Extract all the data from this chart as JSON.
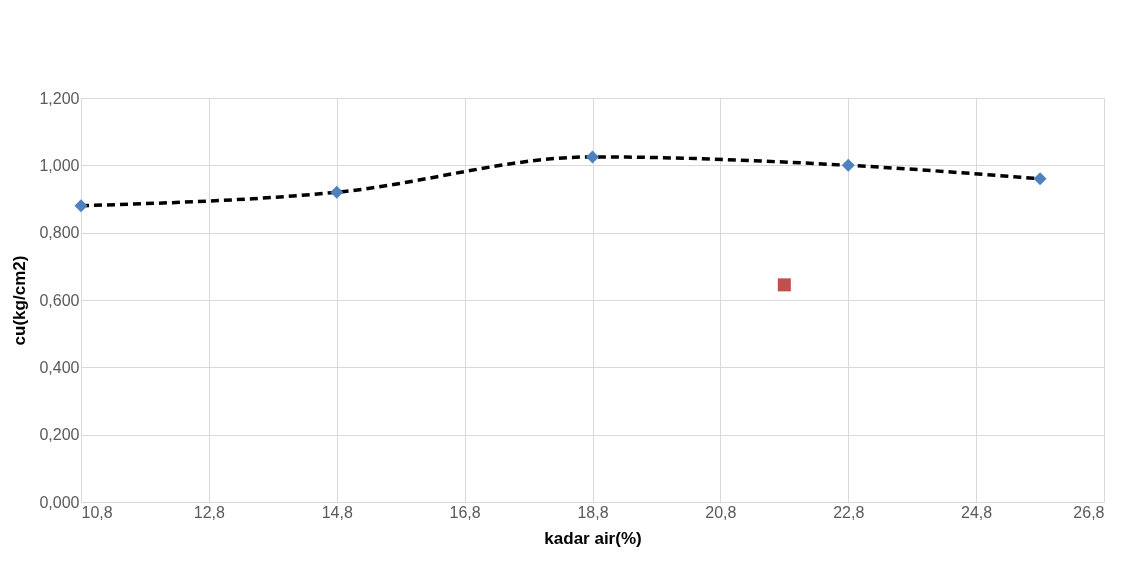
{
  "chart_data": {
    "type": "scatter",
    "xlabel": "kadar air(%)",
    "ylabel": "cu(kg/cm2)",
    "xlim": [
      10.8,
      26.8
    ],
    "ylim": [
      0,
      1.2
    ],
    "xticks": [
      {
        "value": 10.8,
        "label": "10,8"
      },
      {
        "value": 12.8,
        "label": "12,8"
      },
      {
        "value": 14.8,
        "label": "14,8"
      },
      {
        "value": 16.8,
        "label": "16,8"
      },
      {
        "value": 18.8,
        "label": "18,8"
      },
      {
        "value": 20.8,
        "label": "20,8"
      },
      {
        "value": 22.8,
        "label": "22,8"
      },
      {
        "value": 24.8,
        "label": "24,8"
      },
      {
        "value": 26.8,
        "label": "26,8"
      }
    ],
    "yticks": [
      {
        "value": 0,
        "label": "0,000"
      },
      {
        "value": 0.2,
        "label": "0,200"
      },
      {
        "value": 0.4,
        "label": "0,400"
      },
      {
        "value": 0.6,
        "label": "0,600"
      },
      {
        "value": 0.8,
        "label": "0,800"
      },
      {
        "value": 1.0,
        "label": "1,000"
      },
      {
        "value": 1.2,
        "label": "1,200"
      }
    ],
    "grid": true,
    "series": [
      {
        "type": "line",
        "color": "#000000",
        "line_style": "dashed",
        "marker": "none",
        "x": [
          10.8,
          14.8,
          18.8,
          22.8,
          25.8
        ],
        "values": [
          0.88,
          0.92,
          1.025,
          1.0,
          0.96
        ]
      },
      {
        "color": "#4f81bd",
        "marker": "diamond",
        "x": [
          10.8,
          14.8,
          18.8,
          22.8,
          25.8
        ],
        "values": [
          0.88,
          0.92,
          1.025,
          1.0,
          0.96
        ]
      },
      {
        "color": "#c0504d",
        "marker": "square",
        "x": [
          21.8
        ],
        "values": [
          0.645
        ]
      }
    ]
  }
}
